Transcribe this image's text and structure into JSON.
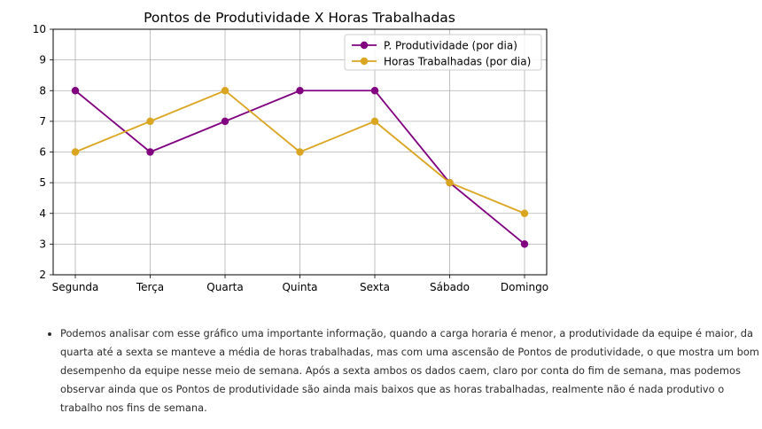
{
  "chart_data": {
    "type": "line",
    "title": "Pontos de Produtividade X Horas Trabalhadas",
    "xlabel": "",
    "ylabel": "",
    "categories": [
      "Segunda",
      "Terça",
      "Quarta",
      "Quinta",
      "Sexta",
      "Sábado",
      "Domingo"
    ],
    "ylim": [
      2,
      10
    ],
    "yticks": [
      2,
      3,
      4,
      5,
      6,
      7,
      8,
      9,
      10
    ],
    "grid": true,
    "legend_position": "top-right",
    "series": [
      {
        "name": "P. Produtividade (por dia)",
        "color": "#800080",
        "marker": "circle",
        "values": [
          8,
          6,
          7,
          8,
          8,
          5,
          3
        ]
      },
      {
        "name": "Horas Trabalhadas (por dia)",
        "color": "#DAA520",
        "marker": "circle",
        "values": [
          6,
          7,
          8,
          6,
          7,
          5,
          4
        ]
      }
    ]
  },
  "notes": [
    "Podemos analisar com esse gráfico uma importante informação, quando a carga horaria é menor, a produtividade da equipe é maior, da quarta até a sexta se manteve a média de horas trabalhadas, mas com uma ascensão de Pontos de produtividade, o que mostra um bom desempenho da equipe nesse meio de semana. Após a sexta ambos os dados caem, claro por conta do fim de semana, mas podemos observar ainda que os Pontos de produtividade são ainda mais baixos que as horas trabalhadas, realmente não é nada produtivo o trabalho nos fins de semana."
  ]
}
